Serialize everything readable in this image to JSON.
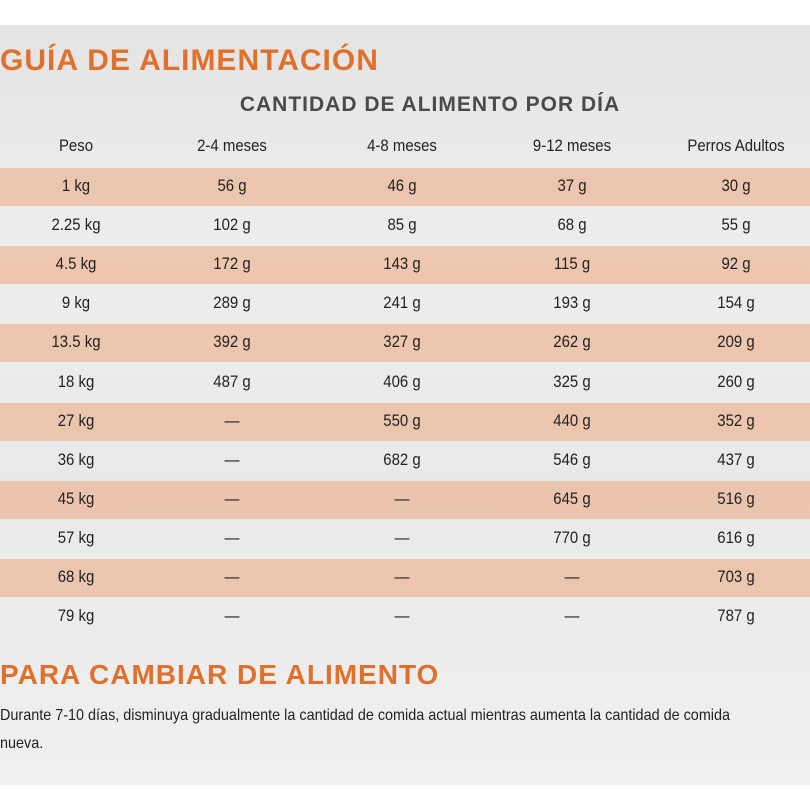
{
  "header": {
    "title": "GUÍA DE ALIMENTACIÓN",
    "subtitle": "CANTIDAD DE ALIMENTO POR DÍA"
  },
  "table": {
    "columns": [
      "Peso",
      "2-4 meses",
      "4-8 meses",
      "9-12 meses",
      "Perros Adultos"
    ],
    "rows": [
      [
        "1 kg",
        "56 g",
        "46 g",
        "37 g",
        "30 g"
      ],
      [
        "2.25 kg",
        "102 g",
        "85 g",
        "68 g",
        "55 g"
      ],
      [
        "4.5 kg",
        "172 g",
        "143 g",
        "115 g",
        "92 g"
      ],
      [
        "9 kg",
        "289 g",
        "241 g",
        "193 g",
        "154 g"
      ],
      [
        "13.5 kg",
        "392 g",
        "327 g",
        "262 g",
        "209 g"
      ],
      [
        "18 kg",
        "487 g",
        "406 g",
        "325 g",
        "260 g"
      ],
      [
        "27 kg",
        "—",
        "550 g",
        "440 g",
        "352 g"
      ],
      [
        "36 kg",
        "—",
        "682 g",
        "546 g",
        "437 g"
      ],
      [
        "45 kg",
        "—",
        "—",
        "645 g",
        "516 g"
      ],
      [
        "57 kg",
        "—",
        "—",
        "770 g",
        "616 g"
      ],
      [
        "68 kg",
        "—",
        "—",
        "—",
        "703 g"
      ],
      [
        "79 kg",
        "—",
        "—",
        "—",
        "787 g"
      ]
    ]
  },
  "footer": {
    "title": "PARA CAMBIAR DE ALIMENTO",
    "text": "Durante 7-10 días, disminuya gradualmente la cantidad de comida actual mientras aumenta la cantidad de comida nueva."
  }
}
